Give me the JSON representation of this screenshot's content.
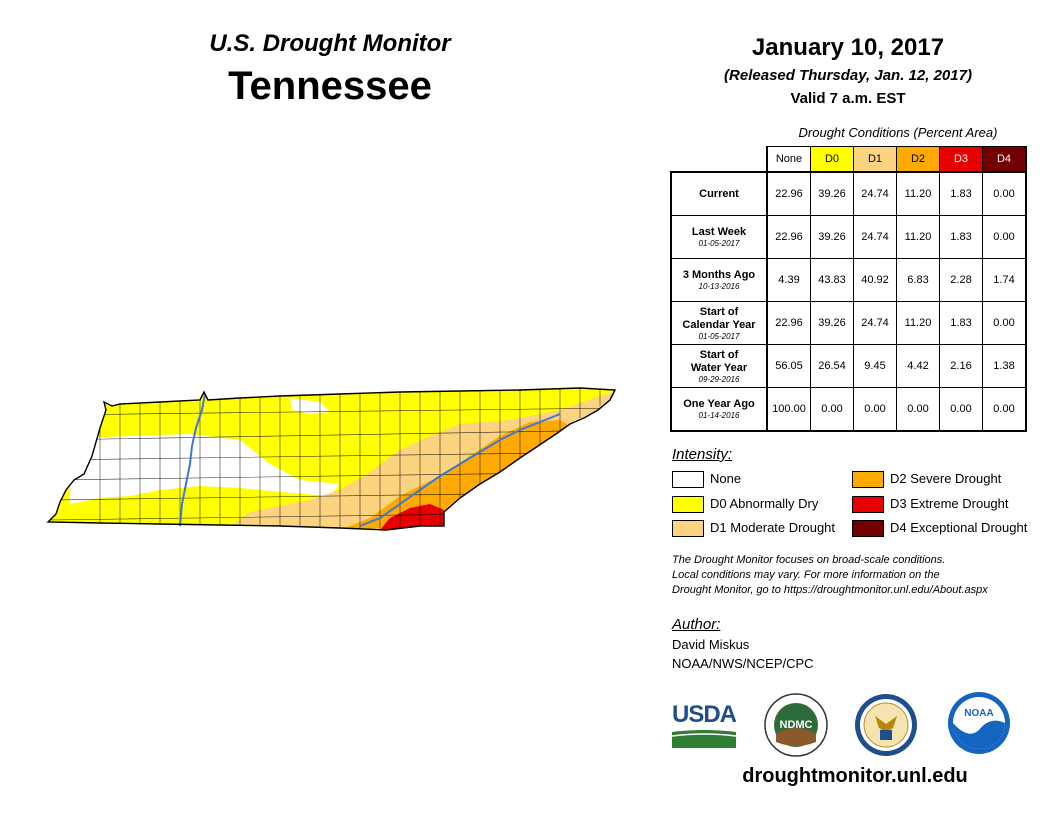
{
  "header": {
    "monitor_title": "U.S. Drought Monitor",
    "state": "Tennessee"
  },
  "date": {
    "main": "January 10, 2017",
    "released": "(Released Thursday, Jan. 12, 2017)",
    "valid": "Valid 7 a.m. EST"
  },
  "table": {
    "caption": "Drought Conditions (Percent Area)",
    "columns": [
      "None",
      "D0",
      "D1",
      "D2",
      "D3",
      "D4"
    ],
    "rows": [
      {
        "label": "Current",
        "label2": "",
        "date": "",
        "values": [
          "22.96",
          "39.26",
          "24.74",
          "11.20",
          "1.83",
          "0.00"
        ]
      },
      {
        "label": "Last Week",
        "label2": "",
        "date": "01-05-2017",
        "values": [
          "22.96",
          "39.26",
          "24.74",
          "11.20",
          "1.83",
          "0.00"
        ]
      },
      {
        "label": "3 Months Ago",
        "label2": "",
        "date": "10-13-2016",
        "values": [
          "4.39",
          "43.83",
          "40.92",
          "6.83",
          "2.28",
          "1.74"
        ]
      },
      {
        "label": "Start of",
        "label2": "Calendar Year",
        "date": "01-05-2017",
        "values": [
          "22.96",
          "39.26",
          "24.74",
          "11.20",
          "1.83",
          "0.00"
        ]
      },
      {
        "label": "Start of",
        "label2": "Water Year",
        "date": "09-29-2016",
        "values": [
          "56.05",
          "26.54",
          "9.45",
          "4.42",
          "2.16",
          "1.38"
        ]
      },
      {
        "label": "One Year Ago",
        "label2": "",
        "date": "01-14-2016",
        "values": [
          "100.00",
          "0.00",
          "0.00",
          "0.00",
          "0.00",
          "0.00"
        ]
      }
    ]
  },
  "legend": {
    "title": "Intensity:",
    "items": [
      {
        "label": "None",
        "color": "#ffffff"
      },
      {
        "label": "D0 Abnormally Dry",
        "color": "#ffff00"
      },
      {
        "label": "D1 Moderate Drought",
        "color": "#fcd37f"
      },
      {
        "label": "D2 Severe Drought",
        "color": "#ffaa00"
      },
      {
        "label": "D3 Extreme Drought",
        "color": "#e60000"
      },
      {
        "label": "D4 Exceptional Drought",
        "color": "#730000"
      }
    ]
  },
  "note": {
    "line1": "The Drought Monitor focuses on broad-scale conditions.",
    "line2": "Local conditions may vary. For more information on the",
    "line3": "Drought Monitor, go to https://droughtmonitor.unl.edu/About.aspx"
  },
  "author": {
    "title": "Author:",
    "name": "David Miskus",
    "org": "NOAA/NWS/NCEP/CPC"
  },
  "logos": {
    "usda": "USDA",
    "ndmc": "NDMC",
    "noaa": "NOAA"
  },
  "url": "droughtmonitor.unl.edu",
  "colors": {
    "none": "#ffffff",
    "d0": "#ffff00",
    "d1": "#fcd37f",
    "d2": "#ffaa00",
    "d3": "#e60000",
    "d4": "#730000",
    "river": "#3c78d8"
  }
}
